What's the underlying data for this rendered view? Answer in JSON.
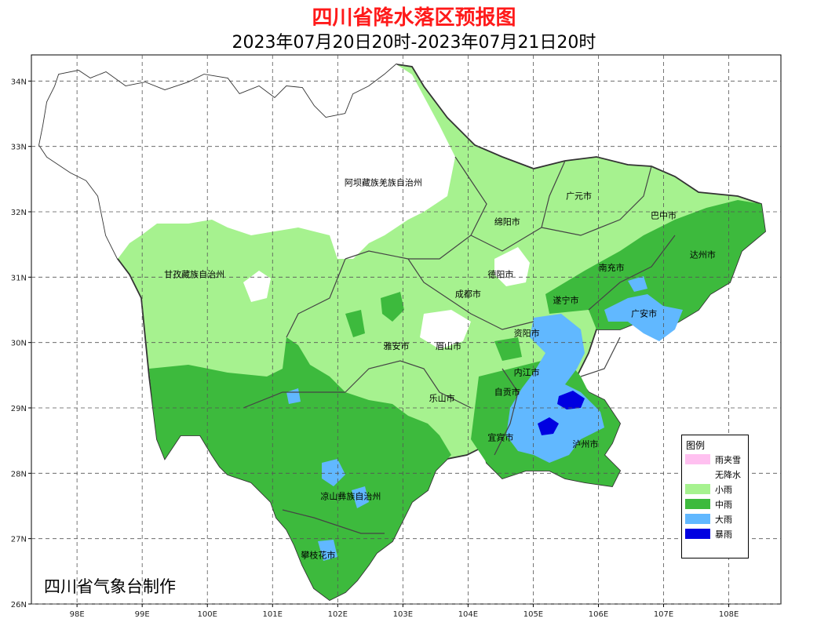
{
  "title": "四川省降水落区预报图",
  "subtitle": "2023年07月20日20时-2023年07月21日20时",
  "credit": "四川省气象台制作",
  "axes": {
    "x_ticks": [
      "98E",
      "99E",
      "100E",
      "101E",
      "102E",
      "103E",
      "104E",
      "105E",
      "106E",
      "107E",
      "108E"
    ],
    "y_ticks": [
      "34N",
      "33N",
      "32N",
      "31N",
      "30N",
      "29N",
      "28N",
      "27N",
      "26N"
    ],
    "lon_range": [
      97.3,
      108.8
    ],
    "lat_range": [
      26,
      34.4
    ],
    "grid": "dashed"
  },
  "legend": {
    "title": "图例",
    "items": [
      {
        "label": "雨夹雪",
        "color": "#ffc0f0"
      },
      {
        "label": "无降水",
        "color": "#ffffff"
      },
      {
        "label": "小雨",
        "color": "#a6f28f"
      },
      {
        "label": "中雨",
        "color": "#3dba3d"
      },
      {
        "label": "大雨",
        "color": "#61b8ff"
      },
      {
        "label": "暴雨",
        "color": "#0000e1"
      }
    ]
  },
  "cities": [
    {
      "name": "阿坝藏族羌族自治州",
      "lon": 102.7,
      "lat": 32.4
    },
    {
      "name": "甘孜藏族自治州",
      "lon": 99.8,
      "lat": 31.0
    },
    {
      "name": "广元市",
      "lon": 105.7,
      "lat": 32.2
    },
    {
      "name": "巴中市",
      "lon": 107.0,
      "lat": 31.9
    },
    {
      "name": "绵阳市",
      "lon": 104.6,
      "lat": 31.8
    },
    {
      "name": "达州市",
      "lon": 107.6,
      "lat": 31.3
    },
    {
      "name": "南充市",
      "lon": 106.2,
      "lat": 31.1
    },
    {
      "name": "德阳市",
      "lon": 104.5,
      "lat": 31.0
    },
    {
      "name": "成都市",
      "lon": 104.0,
      "lat": 30.7
    },
    {
      "name": "遂宁市",
      "lon": 105.5,
      "lat": 30.6
    },
    {
      "name": "广安市",
      "lon": 106.7,
      "lat": 30.4
    },
    {
      "name": "资阳市",
      "lon": 104.9,
      "lat": 30.1
    },
    {
      "name": "雅安市",
      "lon": 102.9,
      "lat": 29.9
    },
    {
      "name": "眉山市",
      "lon": 103.7,
      "lat": 29.9
    },
    {
      "name": "内江市",
      "lon": 104.9,
      "lat": 29.5
    },
    {
      "name": "自贡市",
      "lon": 104.6,
      "lat": 29.2
    },
    {
      "name": "乐山市",
      "lon": 103.6,
      "lat": 29.1
    },
    {
      "name": "宜宾市",
      "lon": 104.5,
      "lat": 28.5
    },
    {
      "name": "泸州市",
      "lon": 105.8,
      "lat": 28.4
    },
    {
      "name": "凉山彝族自治州",
      "lon": 102.2,
      "lat": 27.6
    },
    {
      "name": "攀枝花市",
      "lon": 101.7,
      "lat": 26.7
    }
  ]
}
